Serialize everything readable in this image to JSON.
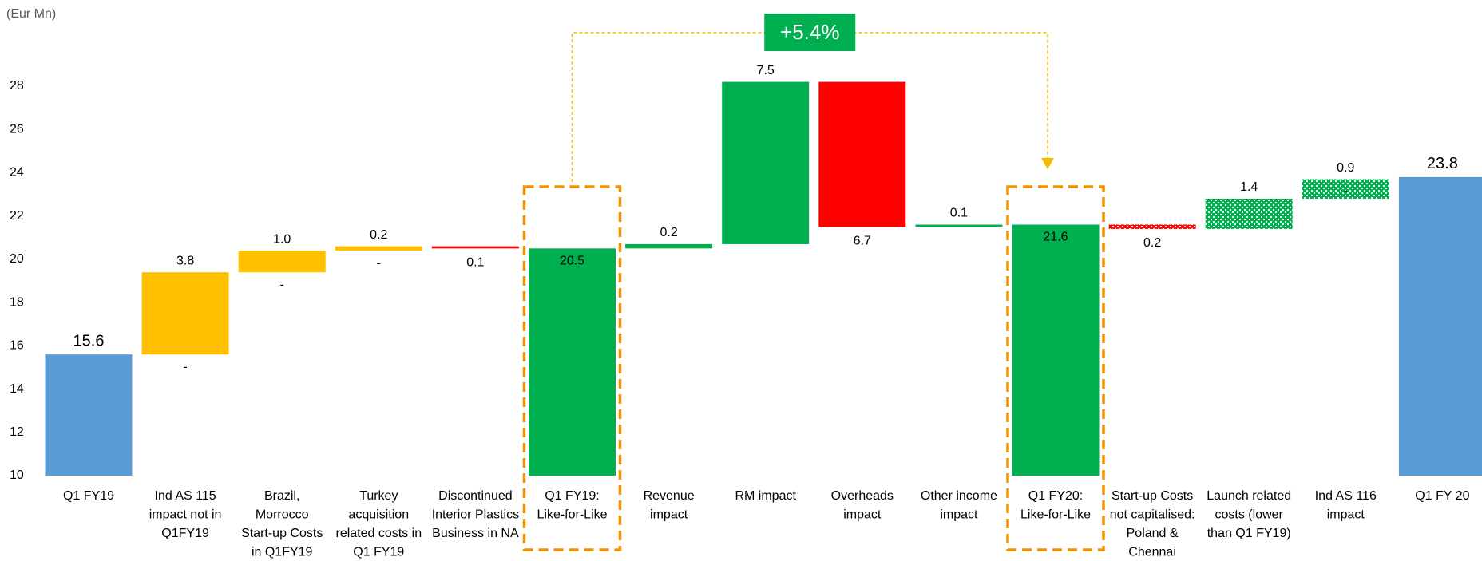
{
  "chart_data": {
    "type": "waterfall",
    "unit_label": "(Eur Mn)",
    "annotation": "+5.4%",
    "categories": [
      [
        "Q1 FY19"
      ],
      [
        "Ind AS 115",
        "impact not in",
        "Q1FY19"
      ],
      [
        "Brazil,",
        "Morrocco",
        "Start-up Costs",
        "in Q1FY19"
      ],
      [
        "Turkey",
        "acquisition",
        "related costs in",
        "Q1 FY19"
      ],
      [
        "Discontinued",
        "Interior Plastics",
        "Business in NA"
      ],
      [
        "Q1 FY19:",
        "Like-for-Like"
      ],
      [
        "Revenue",
        "impact"
      ],
      [
        "RM impact"
      ],
      [
        "Overheads",
        "impact"
      ],
      [
        "Other income",
        "impact"
      ],
      [
        "Q1 FY20:",
        "Like-for-Like"
      ],
      [
        "Start-up Costs",
        "not capitalised:",
        "Poland &",
        "Chennai"
      ],
      [
        "Launch related",
        "costs (lower",
        "than Q1 FY19)"
      ],
      [
        "Ind AS 116",
        "impact"
      ],
      [
        "Q1 FY 20"
      ]
    ],
    "kinds": [
      "total",
      "increase",
      "increase",
      "increase",
      "decrease",
      "total",
      "increase",
      "increase",
      "decrease",
      "increase",
      "total",
      "decrease",
      "increase",
      "increase",
      "total"
    ],
    "values": [
      15.6,
      3.8,
      1.0,
      0.2,
      0.1,
      20.5,
      0.2,
      7.5,
      6.7,
      0.1,
      21.6,
      0.2,
      1.4,
      0.9,
      23.8
    ],
    "value_labels": [
      "15.6",
      "3.8",
      "1.0",
      "0.2",
      "0.1",
      "20.5",
      "0.2",
      "7.5",
      "6.7",
      "0.1",
      "21.6",
      "0.2",
      "1.4",
      "0.9",
      "23.8"
    ],
    "sub_labels": [
      null,
      "-",
      "-",
      "-",
      null,
      null,
      null,
      null,
      null,
      null,
      null,
      null,
      null,
      "-",
      null
    ],
    "colors": [
      "#5b9bd5",
      "#ffc000",
      "#ffc000",
      "#ffc000",
      "#ff0000",
      "#00b050",
      "#00b050",
      "#00b050",
      "#ff0000",
      "#00b050",
      "#00b050",
      "#ff0000",
      "#00b050",
      "#00b050",
      "#5b9bd5"
    ],
    "dotted": [
      false,
      false,
      false,
      false,
      false,
      false,
      false,
      false,
      false,
      false,
      false,
      true,
      true,
      true,
      false
    ],
    "highlighted": [
      5,
      10
    ],
    "ylim": [
      10,
      29.5
    ],
    "yticks": [
      10,
      12,
      14,
      16,
      18,
      20,
      22,
      24,
      26,
      28
    ]
  }
}
